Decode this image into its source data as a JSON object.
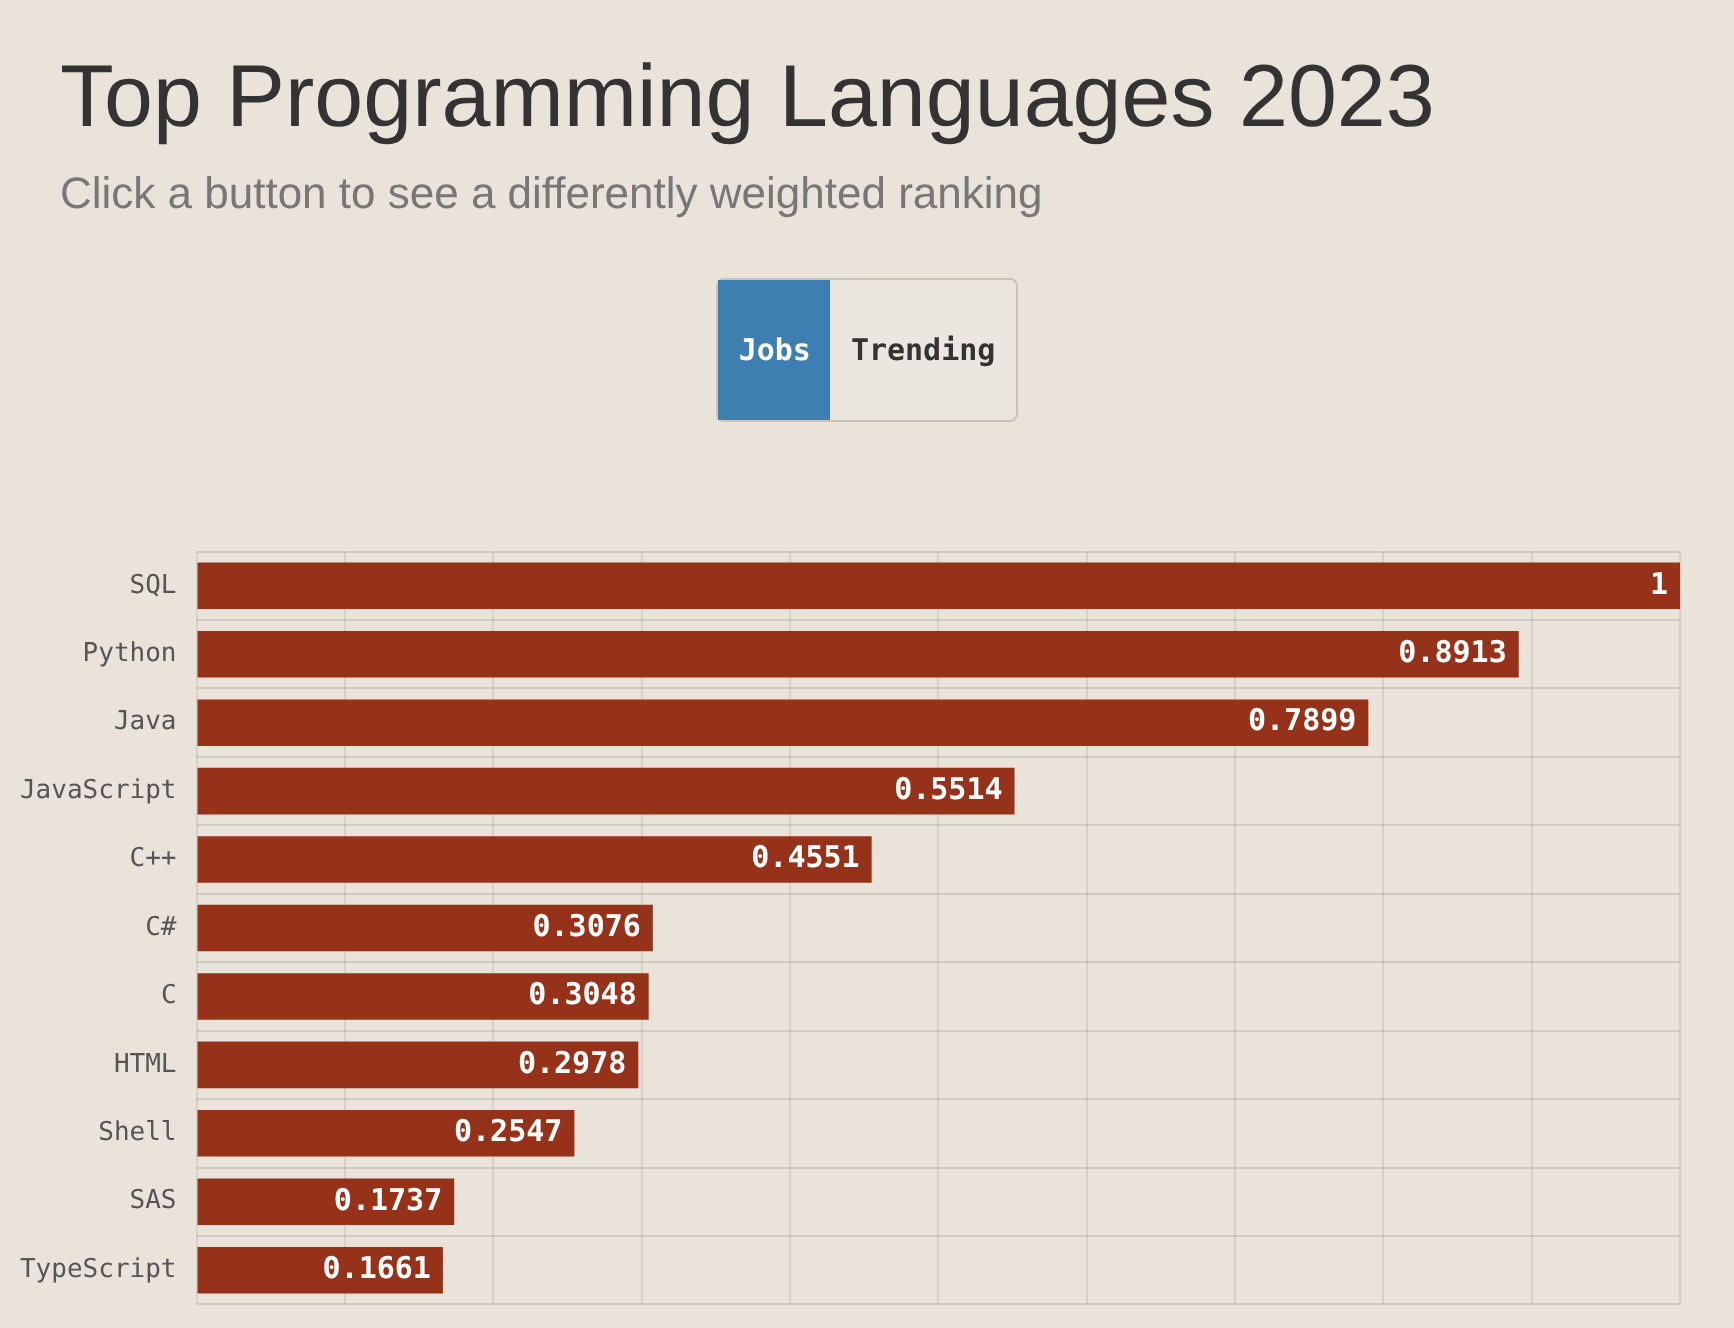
{
  "chart_data": {
    "type": "bar",
    "orientation": "horizontal",
    "title": "Top Programming Languages 2023",
    "subtitle": "Click a button to see a differently weighted ranking",
    "annotations": [
      "Jobs",
      "Trending"
    ],
    "categories": [
      "SQL",
      "Python",
      "Java",
      "JavaScript",
      "C++",
      "C#",
      "C",
      "HTML",
      "Shell",
      "SAS",
      "TypeScript"
    ],
    "values": [
      1,
      0.8913,
      0.7899,
      0.5514,
      0.4551,
      0.3076,
      0.3048,
      0.2978,
      0.2547,
      0.1737,
      0.1661
    ],
    "color": "#96321a",
    "data_labels": true,
    "xlim": [
      0,
      1
    ],
    "xticks": [
      {
        "value": 0,
        "label": null
      },
      {
        "value": 0.1,
        "label": null
      },
      {
        "value": 0.2,
        "label": null
      },
      {
        "value": 0.3,
        "label": null
      },
      {
        "value": 0.4,
        "label": null
      },
      {
        "value": 0.5,
        "label": null
      },
      {
        "value": 0.6,
        "label": null
      },
      {
        "value": 0.7,
        "label": null
      },
      {
        "value": 0.8,
        "label": null
      },
      {
        "value": 0.9,
        "label": null
      },
      {
        "value": 1,
        "label": null
      }
    ],
    "grid": true,
    "tick_labels": "y",
    "legend": false
  }
}
